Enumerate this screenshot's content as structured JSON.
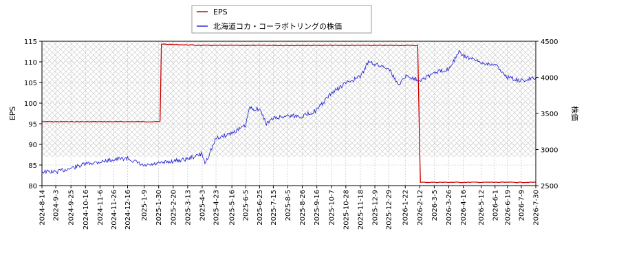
{
  "chart_data": {
    "type": "line",
    "legend": {
      "placement": "top-center",
      "entries": [
        "EPS",
        "北海道コカ・コーラボトリングの株価"
      ]
    },
    "colors": {
      "eps": "#cc0000",
      "price": "#2b2bd6",
      "grid": "#b8b8b8",
      "frame": "#000000"
    },
    "grid": true,
    "x_ticks": [
      "2024-8-14",
      "2024-9-3",
      "2024-9-25",
      "2024-10-16",
      "2024-11-6",
      "2024-11-26",
      "2024-12-16",
      "2025-1-9",
      "2025-1-30",
      "2025-2-20",
      "2025-3-13",
      "2025-4-3",
      "2025-4-23",
      "2025-5-16",
      "2025-6-5",
      "2025-6-25",
      "2025-7-15",
      "2025-8-5",
      "2025-8-26",
      "2025-9-16",
      "2025-10-7",
      "2025-10-28",
      "2025-11-18",
      "2025-12-9",
      "2025-12-29",
      "2026-1-22",
      "2026-2-12",
      "2026-3-5",
      "2026-3-26",
      "2026-4-16",
      "2026-5-12",
      "2026-6-1",
      "2026-6-19",
      "2026-7-9",
      "2026-7-30"
    ],
    "left_axis": {
      "label": "EPS",
      "ylim": [
        80,
        115
      ],
      "ticks": [
        80,
        85,
        90,
        95,
        100,
        105,
        110,
        115
      ]
    },
    "right_axis": {
      "label": "株価",
      "ylim": [
        2500,
        4500
      ],
      "ticks": [
        2500,
        3000,
        3500,
        4000,
        4500
      ]
    },
    "series": [
      {
        "name": "EPS",
        "axis": "left",
        "points": [
          [
            "2024-8-14",
            95.5
          ],
          [
            "2025-1-9",
            95.5
          ],
          [
            "2025-1-30",
            95.5
          ],
          [
            "2025-2-1",
            95.6
          ],
          [
            "2025-2-3",
            114.3
          ],
          [
            "2025-4-3",
            114.0
          ],
          [
            "2025-6-25",
            114.0
          ],
          [
            "2025-9-16",
            114.0
          ],
          [
            "2025-12-29",
            114.0
          ],
          [
            "2026-2-9",
            114.0
          ],
          [
            "2026-2-12",
            88.0
          ],
          [
            "2026-2-13",
            80.8
          ],
          [
            "2026-7-30",
            80.8
          ]
        ]
      },
      {
        "name": "北海道コカ・コーラボトリングの株価",
        "axis": "right",
        "points": [
          [
            "2024-8-14",
            2695
          ],
          [
            "2024-9-3",
            2690
          ],
          [
            "2024-9-25",
            2740
          ],
          [
            "2024-10-16",
            2800
          ],
          [
            "2024-11-6",
            2830
          ],
          [
            "2024-11-26",
            2860
          ],
          [
            "2024-12-16",
            2880
          ],
          [
            "2025-1-9",
            2770
          ],
          [
            "2025-1-30",
            2805
          ],
          [
            "2025-2-20",
            2840
          ],
          [
            "2025-3-13",
            2870
          ],
          [
            "2025-4-3",
            2940
          ],
          [
            "2025-4-7",
            2805
          ],
          [
            "2025-4-23",
            3150
          ],
          [
            "2025-5-16",
            3230
          ],
          [
            "2025-6-5",
            3330
          ],
          [
            "2025-6-10",
            3570
          ],
          [
            "2025-6-25",
            3560
          ],
          [
            "2025-7-5",
            3360
          ],
          [
            "2025-7-15",
            3430
          ],
          [
            "2025-8-5",
            3470
          ],
          [
            "2025-8-26",
            3460
          ],
          [
            "2025-9-16",
            3545
          ],
          [
            "2025-10-7",
            3780
          ],
          [
            "2025-10-28",
            3920
          ],
          [
            "2025-11-18",
            4010
          ],
          [
            "2025-12-1",
            4230
          ],
          [
            "2025-12-9",
            4180
          ],
          [
            "2025-12-29",
            4130
          ],
          [
            "2026-1-12",
            3890
          ],
          [
            "2026-1-22",
            4020
          ],
          [
            "2026-2-12",
            3965
          ],
          [
            "2026-3-5",
            4060
          ],
          [
            "2026-3-26",
            4120
          ],
          [
            "2026-4-10",
            4350
          ],
          [
            "2026-4-16",
            4300
          ],
          [
            "2026-5-12",
            4200
          ],
          [
            "2026-6-1",
            4180
          ],
          [
            "2026-6-19",
            4000
          ],
          [
            "2026-7-9",
            3950
          ],
          [
            "2026-7-30",
            3995
          ]
        ]
      }
    ]
  }
}
